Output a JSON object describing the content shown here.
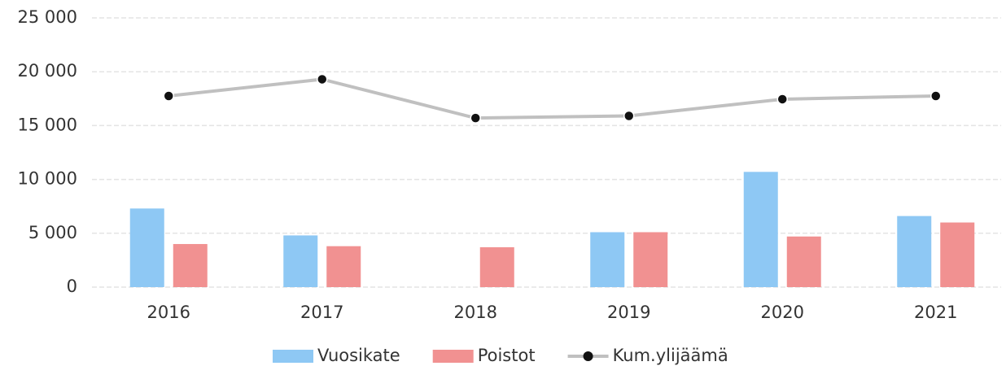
{
  "chart_data": {
    "type": "bar",
    "categories": [
      "2016",
      "2017",
      "2018",
      "2019",
      "2020",
      "2021"
    ],
    "series": [
      {
        "name": "Vuosikate",
        "color": "#8ec8f4",
        "values": [
          7300,
          4800,
          0,
          5100,
          10700,
          6600
        ]
      },
      {
        "name": "Poistot",
        "color": "#f19191",
        "values": [
          4000,
          3800,
          3700,
          5100,
          4700,
          6000
        ]
      },
      {
        "name": "Kum.ylijäämä",
        "type": "line",
        "color": "#c0c0c0",
        "marker_color": "#111111",
        "values": [
          17750,
          19300,
          15700,
          15900,
          17450,
          17750
        ]
      }
    ],
    "ylim": [
      0,
      25000
    ],
    "yticks": [
      0,
      {
        "value": 5000,
        "label": "5 000"
      },
      {
        "value": 10000,
        "label": "10 000"
      },
      {
        "value": 15000,
        "label": "15 000"
      },
      {
        "value": 20000,
        "label": "20 000"
      },
      {
        "value": 25000,
        "label": "25 000"
      }
    ],
    "grid": true,
    "legend": "bottom"
  }
}
